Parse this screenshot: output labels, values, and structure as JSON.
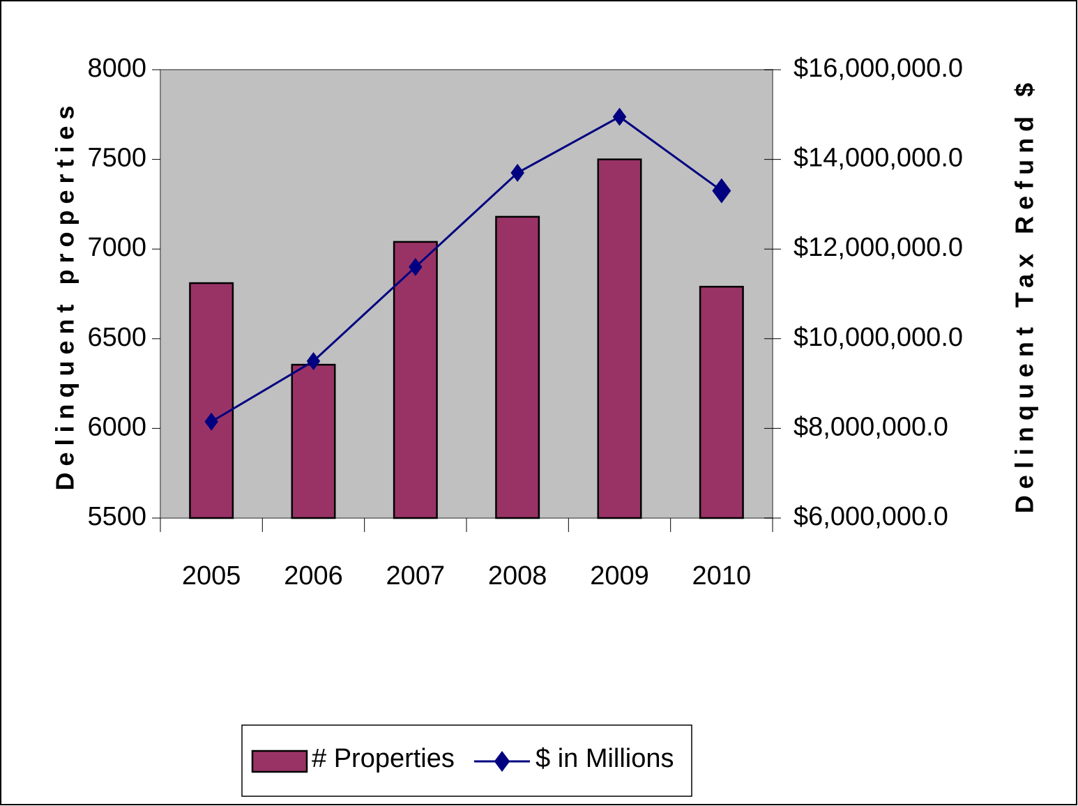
{
  "chart_data": {
    "type": "bar",
    "categories": [
      "2005",
      "2006",
      "2007",
      "2008",
      "2009",
      "2010"
    ],
    "series": [
      {
        "name": "# Properties",
        "type": "bar",
        "color": "#993366",
        "values": [
          6810,
          6355,
          7040,
          7180,
          7500,
          6790
        ]
      },
      {
        "name": "$ in Millions",
        "type": "line",
        "color": "#000080",
        "axis": "y2",
        "values": [
          8150000,
          9500000,
          11600000,
          13700000,
          14950000,
          13300000
        ]
      }
    ],
    "y_label": "Delinquent properties",
    "y2_label": "Delinquent Tax Refund $",
    "ylim": [
      5500,
      8000
    ],
    "yticks": [
      5500,
      6000,
      6500,
      7000,
      7500,
      8000
    ],
    "y2lim": [
      6000000,
      16000000
    ],
    "y2ticks": [
      {
        "value": 6000000,
        "label": "$6,000,000.0"
      },
      {
        "value": 8000000,
        "label": "$8,000,000.0"
      },
      {
        "value": 10000000,
        "label": "$10,000,000.0"
      },
      {
        "value": 12000000,
        "label": "$12,000,000.0"
      },
      {
        "value": 14000000,
        "label": "$14,000,000.0"
      },
      {
        "value": 16000000,
        "label": "$16,000,000.0"
      }
    ],
    "plot_background": "#c0c0c0",
    "legend": "bottom"
  }
}
